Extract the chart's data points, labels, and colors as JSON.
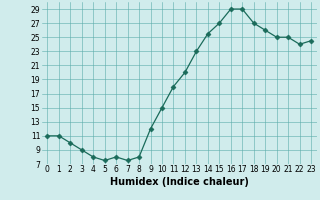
{
  "x": [
    0,
    1,
    2,
    3,
    4,
    5,
    6,
    7,
    8,
    9,
    10,
    11,
    12,
    13,
    14,
    15,
    16,
    17,
    18,
    19,
    20,
    21,
    22,
    23
  ],
  "y": [
    11,
    11,
    10,
    9,
    8,
    7.5,
    8,
    7.5,
    8,
    12,
    15,
    18,
    20,
    23,
    25.5,
    27,
    29,
    29,
    27,
    26,
    25,
    25,
    24,
    24.5
  ],
  "line_color": "#1a6b5a",
  "marker": "D",
  "marker_size": 2.5,
  "bg_color": "#d0ecec",
  "grid_color": "#5aadaa",
  "xlabel": "Humidex (Indice chaleur)",
  "xlim": [
    -0.5,
    23.5
  ],
  "ylim": [
    7,
    30
  ],
  "yticks": [
    7,
    9,
    11,
    13,
    15,
    17,
    19,
    21,
    23,
    25,
    27,
    29
  ],
  "xticks": [
    0,
    1,
    2,
    3,
    4,
    5,
    6,
    7,
    8,
    9,
    10,
    11,
    12,
    13,
    14,
    15,
    16,
    17,
    18,
    19,
    20,
    21,
    22,
    23
  ],
  "xlabel_fontsize": 7,
  "tick_fontsize": 5.5
}
